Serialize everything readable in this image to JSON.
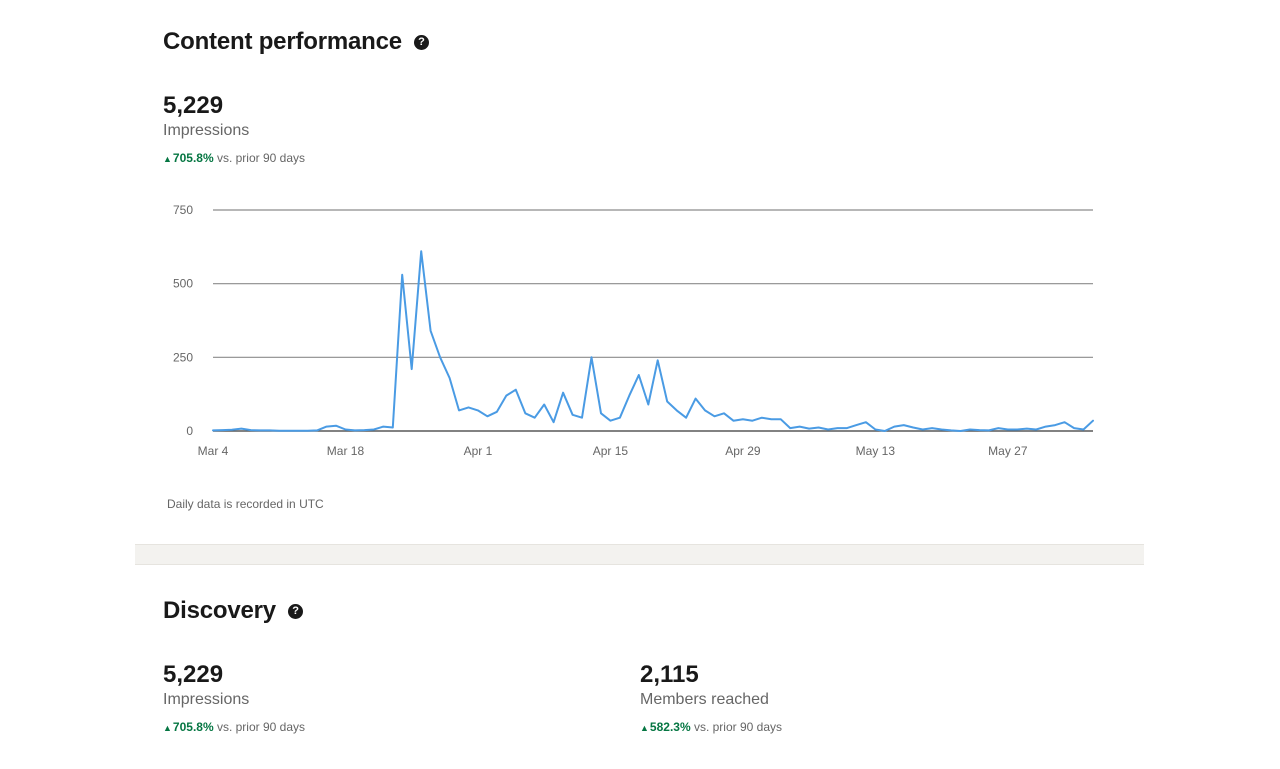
{
  "content": {
    "title": "Content performance",
    "help_icon": "question-circle-icon",
    "impressions": {
      "value": "5,229",
      "label": "Impressions",
      "change_pct": "705.8%",
      "change_suffix": " vs. prior 90 days"
    },
    "footnote": "Daily data is recorded in UTC"
  },
  "discovery": {
    "title": "Discovery",
    "help_icon": "question-circle-icon",
    "impressions": {
      "value": "5,229",
      "label": "Impressions",
      "change_pct": "705.8%",
      "change_suffix": " vs. prior 90 days"
    },
    "members": {
      "value": "2,115",
      "label": "Members reached",
      "change_pct": "582.3%",
      "change_suffix": " vs. prior 90 days"
    }
  },
  "colors": {
    "line": "#4a9be4",
    "positive": "#057642",
    "grid": "#8c8c8c"
  },
  "chart_data": {
    "type": "line",
    "title": "",
    "xlabel": "",
    "ylabel": "",
    "ylim": [
      0,
      750
    ],
    "yticks": [
      "0",
      "250",
      "500",
      "750"
    ],
    "grid": true,
    "xtick_labels": [
      "Mar 4",
      "Mar 18",
      "Apr 1",
      "Apr 15",
      "Apr 29",
      "May 13",
      "May 27"
    ],
    "start_label": "Mar 4",
    "series": [
      {
        "values": [
          2,
          3,
          4,
          8,
          3,
          2,
          2,
          1,
          1,
          1,
          1,
          2,
          15,
          18,
          5,
          2,
          3,
          5,
          15,
          12,
          530,
          210,
          610,
          340,
          250,
          180,
          70,
          80,
          70,
          50,
          65,
          120,
          140,
          60,
          45,
          90,
          30,
          130,
          55,
          45,
          250,
          60,
          35,
          45,
          120,
          190,
          90,
          240,
          100,
          70,
          45,
          110,
          70,
          50,
          60,
          35,
          40,
          35,
          45,
          40,
          40,
          10,
          15,
          8,
          12,
          5,
          10,
          10,
          20,
          30,
          5,
          0,
          15,
          20,
          12,
          5,
          10,
          5,
          2,
          0,
          5,
          3,
          2,
          10,
          5,
          5,
          8,
          5,
          15,
          20,
          30,
          10,
          5,
          35
        ]
      }
    ]
  }
}
